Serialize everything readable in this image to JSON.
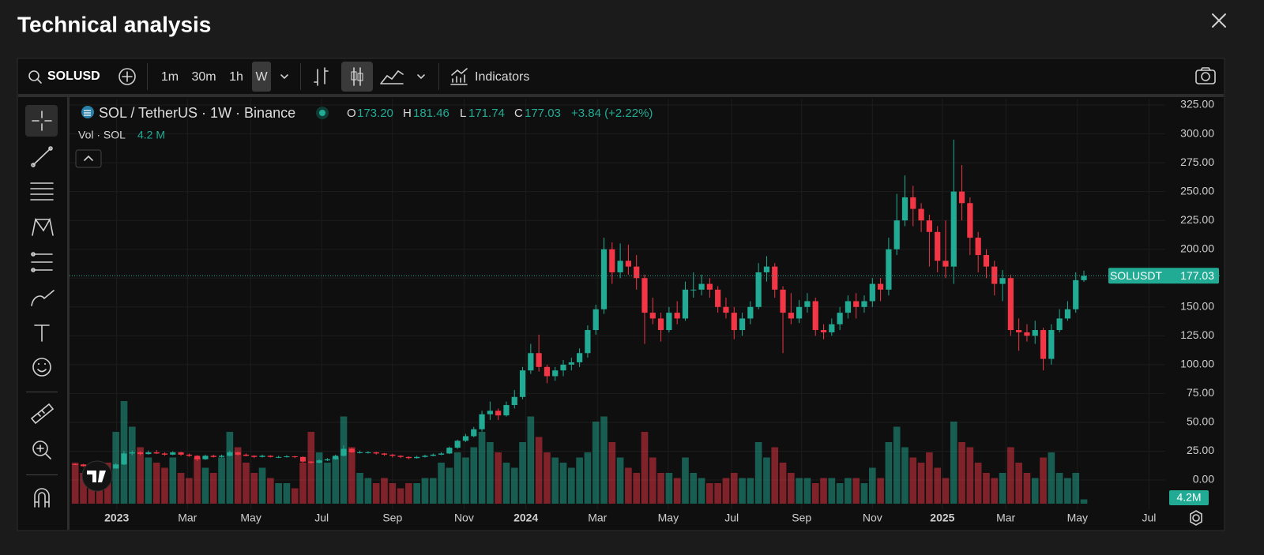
{
  "header": {
    "title": "Technical analysis"
  },
  "toolbar": {
    "symbol": "SOLUSD",
    "intervals": [
      "1m",
      "30m",
      "1h",
      "W"
    ],
    "indicators": "Indicators"
  },
  "legend": {
    "symbol": "SOL / TetherUS · 1W · Binance",
    "open_label": "O",
    "open": "173.20",
    "high_label": "H",
    "low_label": "L",
    "close_label": "C",
    "change": "+3.84 (+2.22%)",
    "volume_label": "Vol · SOL",
    "volume": "4.2 M"
  },
  "price_tag": {
    "name": "SOLUSDT"
  },
  "volume_tag": "4.2M",
  "chart_data": {
    "type": "candlestick",
    "up_color": "#22ab94",
    "down_color": "#f23645",
    "grid": true,
    "xlim": [
      -0.7,
      134
    ],
    "xticks": [
      {
        "value": 5.1,
        "label": "2023"
      },
      {
        "value": 13.8,
        "label": "Mar"
      },
      {
        "value": 21.6,
        "label": "May"
      },
      {
        "value": 30.3,
        "label": "Jul"
      },
      {
        "value": 39,
        "label": "Sep"
      },
      {
        "value": 47.8,
        "label": "Nov"
      },
      {
        "value": 55.4,
        "label": "2024"
      },
      {
        "value": 64.2,
        "label": "Mar"
      },
      {
        "value": 72.9,
        "label": "May"
      },
      {
        "value": 80.7,
        "label": "Jul"
      },
      {
        "value": 89.3,
        "label": "Sep"
      },
      {
        "value": 98,
        "label": "Nov"
      },
      {
        "value": 106.6,
        "label": "2025"
      },
      {
        "value": 114.4,
        "label": "Mar"
      },
      {
        "value": 123.2,
        "label": "May"
      },
      {
        "value": 132,
        "label": "Jul"
      }
    ],
    "ylim": [
      -25.3,
      330.5
    ],
    "yticks": [
      {
        "value": 0,
        "label": "0.00"
      },
      {
        "value": 25,
        "label": "25.00"
      },
      {
        "value": 50,
        "label": "50.00"
      },
      {
        "value": 75,
        "label": "75.00"
      },
      {
        "value": 100,
        "label": "100.00"
      },
      {
        "value": 125,
        "label": "125.00"
      },
      {
        "value": 150,
        "label": "150.00"
      },
      {
        "value": 175,
        "label": "175.00"
      },
      {
        "value": 200,
        "label": "200.00"
      },
      {
        "value": 225,
        "label": "225.00"
      },
      {
        "value": 250,
        "label": "250.00"
      },
      {
        "value": 275,
        "label": "275.00"
      },
      {
        "value": 300,
        "label": "300.00"
      },
      {
        "value": 325,
        "label": "325.00"
      }
    ],
    "ohlc": [
      [
        13.8,
        14.5,
        13.0,
        13.5
      ],
      [
        13.5,
        14.0,
        11.5,
        12.0
      ],
      [
        12.0,
        12.5,
        11.0,
        11.5
      ],
      [
        11.5,
        12.0,
        10.0,
        10.5
      ],
      [
        10.5,
        11.0,
        9.5,
        10.0
      ],
      [
        10.0,
        14.5,
        9.8,
        13.5
      ],
      [
        13.5,
        25.0,
        13.0,
        23.0
      ],
      [
        23.0,
        25.5,
        21.5,
        24.0
      ],
      [
        24.0,
        25.0,
        21.5,
        22.5
      ],
      [
        22.5,
        25.5,
        22.0,
        24.0
      ],
      [
        24.0,
        26.0,
        22.5,
        23.0
      ],
      [
        23.0,
        24.0,
        21.0,
        22.0
      ],
      [
        22.0,
        25.0,
        21.5,
        24.0
      ],
      [
        24.0,
        24.5,
        21.0,
        22.0
      ],
      [
        22.0,
        23.0,
        20.0,
        21.0
      ],
      [
        21.0,
        21.5,
        16.5,
        18.0
      ],
      [
        18.0,
        22.0,
        17.5,
        21.0
      ],
      [
        21.0,
        22.0,
        19.5,
        20.0
      ],
      [
        20.0,
        22.0,
        19.5,
        21.0
      ],
      [
        21.0,
        25.5,
        20.5,
        24.0
      ],
      [
        24.0,
        24.5,
        21.0,
        22.0
      ],
      [
        22.0,
        23.0,
        20.5,
        21.0
      ],
      [
        21.0,
        21.5,
        19.0,
        20.0
      ],
      [
        20.0,
        22.0,
        19.5,
        21.0
      ],
      [
        21.0,
        21.5,
        19.5,
        20.0
      ],
      [
        20.0,
        21.0,
        19.0,
        20.0
      ],
      [
        20.0,
        21.5,
        19.5,
        20.5
      ],
      [
        20.5,
        21.0,
        19.0,
        20.0
      ],
      [
        20.0,
        20.5,
        15.0,
        16.0
      ],
      [
        16.0,
        16.5,
        14.0,
        15.0
      ],
      [
        15.0,
        18.0,
        14.5,
        17.0
      ],
      [
        17.0,
        19.0,
        16.5,
        18.0
      ],
      [
        18.0,
        22.0,
        17.5,
        21.0
      ],
      [
        21.0,
        30.0,
        20.5,
        27.0
      ],
      [
        27.0,
        28.0,
        23.5,
        24.0
      ],
      [
        24.0,
        25.5,
        23.0,
        24.0
      ],
      [
        24.0,
        25.0,
        23.0,
        24.0
      ],
      [
        24.0,
        24.5,
        22.0,
        23.0
      ],
      [
        23.0,
        23.5,
        21.0,
        22.0
      ],
      [
        22.0,
        22.5,
        19.5,
        21.0
      ],
      [
        21.0,
        21.5,
        19.0,
        20.0
      ],
      [
        20.0,
        20.5,
        18.0,
        19.0
      ],
      [
        19.0,
        21.0,
        18.5,
        20.0
      ],
      [
        20.0,
        22.0,
        19.5,
        21.0
      ],
      [
        21.0,
        23.0,
        20.5,
        22.0
      ],
      [
        22.0,
        24.0,
        21.5,
        23.0
      ],
      [
        23.0,
        29.0,
        22.5,
        28.0
      ],
      [
        28.0,
        35.0,
        27.0,
        34.0
      ],
      [
        34.0,
        40.0,
        33.0,
        38.0
      ],
      [
        38.0,
        46.0,
        37.0,
        44.0
      ],
      [
        44.0,
        60.0,
        42.0,
        57.0
      ],
      [
        57.0,
        68.0,
        52.0,
        60.0
      ],
      [
        60.0,
        62.0,
        52.0,
        56.0
      ],
      [
        56.0,
        68.0,
        55.0,
        65.0
      ],
      [
        65.0,
        78.0,
        62.0,
        72.0
      ],
      [
        72.0,
        98.0,
        70.0,
        95.0
      ],
      [
        95.0,
        118.0,
        92.0,
        110.0
      ],
      [
        110.0,
        126.0,
        94.0,
        98.0
      ],
      [
        98.0,
        100.0,
        84.0,
        90.0
      ],
      [
        90.0,
        98.0,
        86.0,
        95.0
      ],
      [
        95.0,
        104.0,
        90.0,
        100.0
      ],
      [
        100.0,
        106.0,
        95.0,
        102.0
      ],
      [
        102.0,
        114.0,
        98.0,
        110.0
      ],
      [
        110.0,
        134.0,
        106.0,
        130.0
      ],
      [
        130.0,
        152.0,
        126.0,
        148.0
      ],
      [
        148.0,
        210.0,
        144.0,
        200.0
      ],
      [
        200.0,
        206.0,
        170.0,
        180.0
      ],
      [
        180.0,
        205.0,
        175.0,
        190.0
      ],
      [
        190.0,
        204.0,
        178.0,
        185.0
      ],
      [
        185.0,
        195.0,
        165.0,
        175.0
      ],
      [
        175.0,
        178.0,
        118.0,
        145.0
      ],
      [
        145.0,
        158.0,
        135.0,
        140.0
      ],
      [
        140.0,
        145.0,
        120.0,
        130.0
      ],
      [
        130.0,
        150.0,
        128.0,
        145.0
      ],
      [
        145.0,
        155.0,
        135.0,
        140.0
      ],
      [
        140.0,
        172.0,
        138.0,
        165.0
      ],
      [
        165.0,
        180.0,
        158.0,
        165.0
      ],
      [
        165.0,
        178.0,
        160.0,
        170.0
      ],
      [
        170.0,
        175.0,
        158.0,
        165.0
      ],
      [
        165.0,
        168.0,
        145.0,
        150.0
      ],
      [
        150.0,
        158.0,
        140.0,
        145.0
      ],
      [
        145.0,
        150.0,
        122.0,
        130.0
      ],
      [
        130.0,
        145.0,
        125.0,
        140.0
      ],
      [
        140.0,
        155.0,
        135.0,
        150.0
      ],
      [
        150.0,
        188.0,
        148.0,
        180.0
      ],
      [
        180.0,
        194.0,
        172.0,
        185.0
      ],
      [
        185.0,
        188.0,
        158.0,
        165.0
      ],
      [
        165.0,
        168.0,
        110.0,
        145.0
      ],
      [
        145.0,
        162.0,
        135.0,
        140.0
      ],
      [
        140.0,
        156.0,
        136.0,
        150.0
      ],
      [
        150.0,
        162.0,
        145.0,
        155.0
      ],
      [
        155.0,
        158.0,
        125.0,
        130.0
      ],
      [
        130.0,
        135.0,
        122.0,
        128.0
      ],
      [
        128.0,
        140.0,
        125.0,
        135.0
      ],
      [
        135.0,
        150.0,
        130.0,
        145.0
      ],
      [
        145.0,
        160.0,
        140.0,
        155.0
      ],
      [
        155.0,
        162.0,
        140.0,
        150.0
      ],
      [
        150.0,
        160.0,
        145.0,
        155.0
      ],
      [
        155.0,
        175.0,
        150.0,
        170.0
      ],
      [
        170.0,
        175.0,
        155.0,
        165.0
      ],
      [
        165.0,
        210.0,
        160.0,
        200.0
      ],
      [
        200.0,
        248.0,
        195.0,
        225.0
      ],
      [
        225.0,
        264.0,
        220.0,
        245.0
      ],
      [
        245.0,
        255.0,
        220.0,
        235.0
      ],
      [
        235.0,
        240.0,
        215.0,
        225.0
      ],
      [
        225.0,
        230.0,
        185.0,
        215.0
      ],
      [
        215.0,
        220.0,
        180.0,
        190.0
      ],
      [
        190.0,
        225.0,
        175.0,
        185.0
      ],
      [
        185.0,
        295.0,
        170.0,
        250.0
      ],
      [
        250.0,
        273.0,
        225.0,
        240.0
      ],
      [
        240.0,
        245.0,
        195.0,
        210.0
      ],
      [
        210.0,
        215.0,
        180.0,
        195.0
      ],
      [
        195.0,
        200.0,
        175.0,
        185.0
      ],
      [
        185.0,
        190.0,
        160.0,
        170.0
      ],
      [
        170.0,
        182.0,
        155.0,
        175.0
      ],
      [
        175.0,
        178.0,
        125.0,
        130.0
      ],
      [
        130.0,
        140.0,
        112.0,
        128.0
      ],
      [
        128.0,
        135.0,
        120.0,
        125.0
      ],
      [
        125.0,
        138.0,
        118.0,
        130.0
      ],
      [
        130.0,
        132.0,
        95.0,
        105.0
      ],
      [
        105.0,
        135.0,
        100.0,
        130.0
      ],
      [
        130.0,
        148.0,
        128.0,
        140.0
      ],
      [
        140.0,
        155.0,
        138.0,
        148.0
      ],
      [
        148.0,
        180.0,
        145.0,
        173.2
      ],
      [
        173.2,
        181.46,
        171.74,
        177.03
      ]
    ],
    "volumes": [
      40,
      30,
      30,
      35,
      40,
      70,
      100,
      75,
      55,
      45,
      40,
      35,
      45,
      30,
      25,
      45,
      35,
      30,
      45,
      70,
      55,
      40,
      30,
      35,
      25,
      20,
      20,
      15,
      40,
      70,
      50,
      40,
      45,
      85,
      55,
      30,
      25,
      20,
      25,
      20,
      15,
      20,
      20,
      25,
      25,
      40,
      35,
      50,
      45,
      55,
      70,
      60,
      50,
      40,
      35,
      60,
      85,
      65,
      50,
      45,
      40,
      35,
      45,
      50,
      80,
      85,
      60,
      45,
      35,
      30,
      70,
      45,
      30,
      30,
      25,
      45,
      30,
      25,
      20,
      20,
      25,
      30,
      25,
      25,
      60,
      45,
      55,
      40,
      30,
      25,
      25,
      20,
      25,
      25,
      20,
      25,
      25,
      20,
      35,
      25,
      60,
      75,
      55,
      45,
      40,
      50,
      35,
      25,
      80,
      60,
      55,
      40,
      30,
      25,
      30,
      55,
      40,
      30,
      25,
      45,
      50,
      30,
      25,
      30,
      4.2
    ]
  }
}
